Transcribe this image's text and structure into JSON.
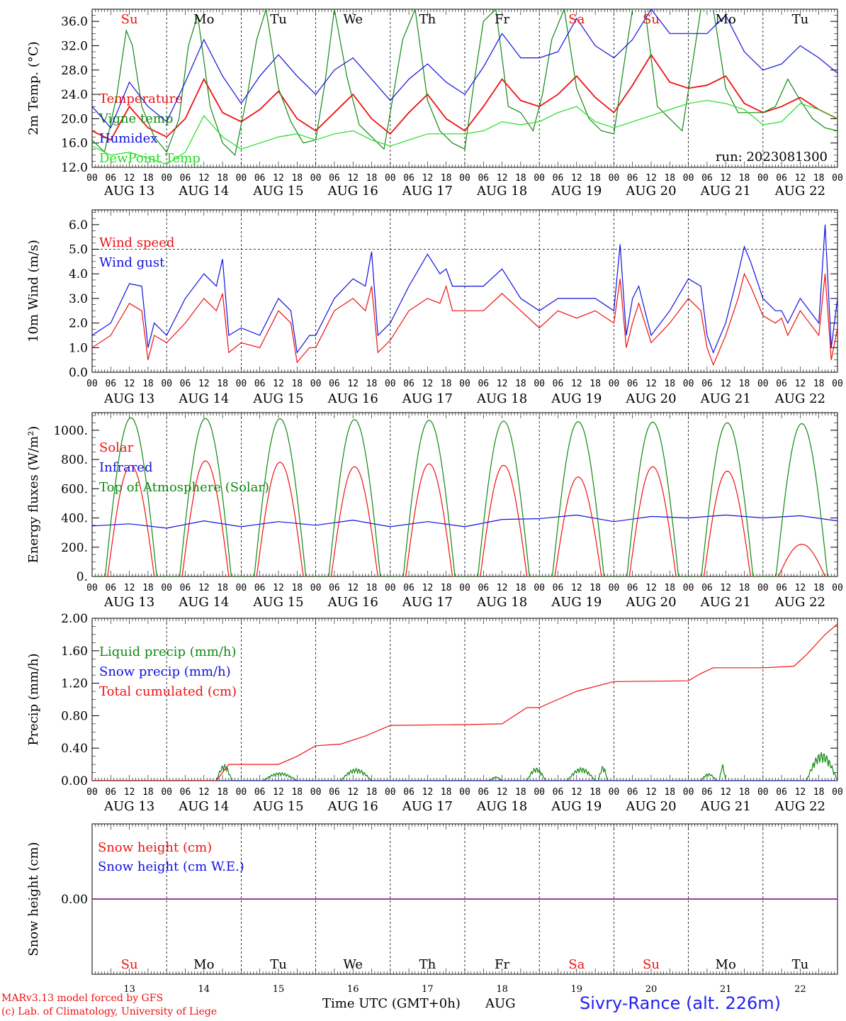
{
  "colors": {
    "red": "#ee1111",
    "green": "#118811",
    "lightgreen": "#22dd22",
    "blue": "#1111dd",
    "purple": "#882288",
    "black": "#000000",
    "station_blue": "#2222ee"
  },
  "days": [
    "AUG 13",
    "AUG 14",
    "AUG 15",
    "AUG 16",
    "AUG 17",
    "AUG 18",
    "AUG 19",
    "AUG 20",
    "AUG 21",
    "AUG 22"
  ],
  "weekdays": [
    "Su",
    "Mo",
    "Tu",
    "We",
    "Th",
    "Fr",
    "Sa",
    "Su",
    "Mo",
    "Tu"
  ],
  "weekday_colors": [
    "red",
    "black",
    "black",
    "black",
    "black",
    "black",
    "red",
    "red",
    "black",
    "black"
  ],
  "day_numbers": [
    "13",
    "14",
    "15",
    "16",
    "17",
    "18",
    "19",
    "20",
    "21",
    "22"
  ],
  "hour_ticks": [
    "00",
    "06",
    "12",
    "18"
  ],
  "hour_tick_end": "00",
  "chart_data": [
    {
      "type": "line",
      "ylabel": "2m Temp. (°C)",
      "ylim": [
        12,
        38
      ],
      "yticks": [
        "12.0",
        "16.0",
        "20.0",
        "24.0",
        "28.0",
        "32.0",
        "36.0"
      ],
      "annotation": "run: 2023081300",
      "x_unit": "hours since AUG 13 00 UTC",
      "series": [
        {
          "name": "Temperature",
          "color": "red",
          "x": [
            0,
            6,
            12,
            18,
            24,
            30,
            36,
            42,
            48,
            54,
            60,
            66,
            72,
            78,
            84,
            90,
            96,
            102,
            108,
            114,
            120,
            126,
            132,
            138,
            144,
            150,
            156,
            162,
            168,
            174,
            180,
            186,
            192,
            198,
            204,
            210,
            216,
            222,
            228,
            234,
            240
          ],
          "values": [
            18.0,
            16.5,
            22.0,
            18.5,
            17.0,
            20.0,
            26.5,
            21.0,
            19.5,
            21.5,
            24.5,
            20.0,
            18.0,
            21.0,
            24.0,
            20.0,
            17.5,
            21.0,
            24.0,
            20.0,
            18.0,
            22.0,
            26.5,
            23.0,
            22.0,
            24.0,
            27.0,
            23.5,
            21.0,
            25.5,
            30.5,
            26.0,
            25.0,
            25.5,
            27.0,
            22.5,
            21.0,
            22.0,
            23.5,
            21.5,
            20.0
          ]
        },
        {
          "name": "Vigne temp",
          "color": "green",
          "x": [
            0,
            4,
            8,
            11,
            13,
            16,
            20,
            24,
            28,
            31,
            34,
            38,
            42,
            46,
            50,
            53,
            56,
            60,
            64,
            68,
            72,
            75,
            78,
            82,
            86,
            90,
            94,
            97,
            100,
            104,
            108,
            112,
            116,
            120,
            123,
            126,
            130,
            134,
            138,
            142,
            145,
            148,
            152,
            156,
            160,
            164,
            168,
            171,
            174,
            178,
            182,
            186,
            190,
            193,
            196,
            200,
            204,
            208,
            212,
            216,
            220,
            224,
            228,
            232,
            236,
            240
          ],
          "values": [
            16.5,
            14.5,
            24.0,
            34.5,
            32.0,
            22.0,
            17.0,
            14.5,
            20.0,
            32.0,
            37.0,
            22.0,
            16.0,
            14.0,
            24.0,
            33.0,
            38.0,
            25.0,
            19.5,
            16.0,
            16.5,
            26.0,
            38.0,
            27.0,
            19.0,
            17.0,
            15.0,
            24.0,
            33.0,
            38.0,
            23.0,
            18.0,
            16.0,
            15.0,
            26.0,
            36.0,
            38.0,
            22.0,
            21.0,
            18.0,
            24.0,
            33.0,
            38.0,
            25.0,
            20.0,
            18.0,
            17.5,
            28.0,
            38.0,
            38.0,
            22.0,
            20.0,
            18.0,
            28.0,
            38.0,
            38.0,
            25.0,
            21.0,
            21.0,
            21.0,
            22.0,
            26.5,
            23.0,
            20.0,
            18.5,
            18.0
          ]
        },
        {
          "name": "Humidex",
          "color": "blue",
          "x": [
            0,
            6,
            12,
            18,
            24,
            30,
            36,
            42,
            48,
            54,
            60,
            66,
            72,
            78,
            84,
            90,
            96,
            102,
            108,
            114,
            120,
            126,
            132,
            138,
            144,
            150,
            156,
            162,
            168,
            174,
            180,
            186,
            192,
            198,
            204,
            210,
            216,
            222,
            228,
            234,
            240
          ],
          "values": [
            22.0,
            18.5,
            26.0,
            22.0,
            19.5,
            26.0,
            33.0,
            27.0,
            22.5,
            27.0,
            30.5,
            27.0,
            24.0,
            28.0,
            30.0,
            26.5,
            23.0,
            26.5,
            29.0,
            26.0,
            24.0,
            28.5,
            34.0,
            30.0,
            30.0,
            31.0,
            36.5,
            32.0,
            30.0,
            33.0,
            38.0,
            34.0,
            34.0,
            34.0,
            37.0,
            31.0,
            28.0,
            29.0,
            32.0,
            30.0,
            27.5
          ]
        },
        {
          "name": "DewPoint Temp",
          "color": "lightgreen",
          "x": [
            0,
            6,
            12,
            18,
            24,
            30,
            36,
            42,
            48,
            54,
            60,
            66,
            72,
            78,
            84,
            90,
            96,
            102,
            108,
            114,
            120,
            126,
            132,
            138,
            144,
            150,
            156,
            162,
            168,
            174,
            180,
            186,
            192,
            198,
            204,
            210,
            216,
            222,
            228,
            234,
            240
          ],
          "values": [
            15.5,
            14.0,
            14.5,
            13.5,
            12.5,
            14.5,
            20.5,
            17.0,
            15.0,
            16.0,
            17.0,
            17.5,
            16.5,
            17.5,
            18.0,
            16.5,
            15.5,
            16.5,
            17.5,
            17.5,
            17.5,
            18.0,
            19.5,
            19.0,
            19.5,
            21.0,
            22.0,
            19.5,
            18.5,
            19.5,
            20.5,
            21.5,
            22.5,
            23.0,
            22.5,
            21.5,
            19.0,
            19.5,
            22.5,
            21.5,
            20.0
          ]
        }
      ]
    },
    {
      "type": "line",
      "ylabel": "10m Wind (m/s)",
      "ylim": [
        0,
        6.6
      ],
      "yticks": [
        "0.0",
        "1.0",
        "2.0",
        "3.0",
        "4.0",
        "5.0",
        "6.0"
      ],
      "ref_line": 5.0,
      "series": [
        {
          "name": "Wind speed",
          "color": "red",
          "x": [
            0,
            6,
            12,
            16,
            18,
            20,
            24,
            30,
            36,
            40,
            42,
            44,
            48,
            54,
            60,
            64,
            66,
            70,
            72,
            78,
            84,
            88,
            90,
            92,
            96,
            102,
            108,
            112,
            114,
            116,
            120,
            126,
            132,
            138,
            144,
            150,
            156,
            162,
            168,
            170,
            172,
            174,
            176,
            180,
            186,
            192,
            196,
            198,
            200,
            204,
            208,
            210,
            212,
            216,
            220,
            222,
            224,
            228,
            234,
            236,
            238,
            240
          ],
          "values": [
            1.0,
            1.5,
            2.8,
            2.5,
            0.5,
            1.5,
            1.2,
            2.0,
            3.0,
            2.5,
            3.2,
            0.8,
            1.2,
            1.0,
            2.5,
            2.0,
            0.4,
            1.0,
            1.0,
            2.5,
            3.0,
            2.5,
            3.5,
            0.8,
            1.3,
            2.5,
            3.0,
            2.8,
            3.5,
            2.5,
            2.5,
            2.5,
            3.2,
            2.5,
            1.8,
            2.5,
            2.2,
            2.5,
            2.0,
            3.8,
            1.0,
            2.0,
            2.8,
            1.2,
            2.0,
            3.0,
            2.5,
            1.0,
            0.3,
            1.5,
            3.0,
            4.0,
            3.5,
            2.3,
            2.0,
            2.2,
            1.5,
            2.5,
            1.5,
            4.0,
            0.5,
            1.8
          ]
        },
        {
          "name": "Wind gust",
          "color": "blue",
          "x": [
            0,
            6,
            12,
            16,
            18,
            20,
            24,
            30,
            36,
            40,
            42,
            44,
            48,
            54,
            60,
            64,
            66,
            70,
            72,
            78,
            84,
            88,
            90,
            92,
            96,
            102,
            108,
            112,
            114,
            116,
            120,
            126,
            132,
            138,
            144,
            150,
            156,
            162,
            168,
            170,
            172,
            174,
            176,
            180,
            186,
            192,
            196,
            198,
            200,
            204,
            208,
            210,
            212,
            216,
            220,
            222,
            224,
            228,
            234,
            236,
            238,
            240
          ],
          "values": [
            1.5,
            2.0,
            3.6,
            3.5,
            1.0,
            2.0,
            1.5,
            3.0,
            4.0,
            3.5,
            4.6,
            1.5,
            1.8,
            1.5,
            3.0,
            2.5,
            0.8,
            1.5,
            1.5,
            3.0,
            3.8,
            3.5,
            4.9,
            1.5,
            2.0,
            3.5,
            4.8,
            4.0,
            4.2,
            3.5,
            3.5,
            3.5,
            4.2,
            3.0,
            2.5,
            3.0,
            3.0,
            3.0,
            2.5,
            5.2,
            1.5,
            3.0,
            3.5,
            1.5,
            2.5,
            3.8,
            3.5,
            1.5,
            0.8,
            2.0,
            4.0,
            5.1,
            4.5,
            3.0,
            2.5,
            2.5,
            2.0,
            3.0,
            2.0,
            6.0,
            1.0,
            3.0
          ]
        }
      ]
    },
    {
      "type": "line",
      "ylabel": "Energy fluxes (W/m²)",
      "ylim": [
        0,
        1120
      ],
      "yticks": [
        "0.",
        "200.",
        "400.",
        "600.",
        "800.",
        "1000."
      ],
      "series": [
        {
          "name": "Solar",
          "color": "red",
          "peaks": [
            760,
            790,
            780,
            750,
            770,
            760,
            680,
            750,
            720,
            220
          ],
          "peak_hour": 12.5,
          "half_width": 7.5
        },
        {
          "name": "Infrared",
          "color": "blue",
          "x": [
            0,
            12,
            24,
            36,
            48,
            60,
            72,
            84,
            96,
            108,
            120,
            132,
            144,
            156,
            168,
            180,
            192,
            204,
            216,
            228,
            240
          ],
          "values": [
            345,
            360,
            330,
            380,
            340,
            375,
            350,
            385,
            340,
            375,
            340,
            390,
            395,
            420,
            375,
            410,
            400,
            420,
            400,
            415,
            380
          ]
        },
        {
          "name": "Top of Atmosphere (Solar)",
          "color": "green",
          "peaks": [
            1085,
            1080,
            1078,
            1072,
            1068,
            1062,
            1058,
            1055,
            1050,
            1045
          ],
          "peak_hour": 12.5,
          "half_width": 8.3
        }
      ]
    },
    {
      "type": "line",
      "ylabel": "Precip (mm/h)",
      "ylim": [
        0,
        2.0
      ],
      "yticks": [
        "0.00",
        "0.40",
        "0.80",
        "1.20",
        "1.60",
        "2.00"
      ],
      "series": [
        {
          "name": "Liquid precip (mm/h)",
          "color": "green",
          "bursts": [
            [
              40,
              45,
              0.2
            ],
            [
              55,
              66,
              0.1
            ],
            [
              80,
              90,
              0.15
            ],
            [
              128,
              132,
              0.05
            ],
            [
              140,
              146,
              0.16
            ],
            [
              153,
              162,
              0.16
            ],
            [
              163,
              166,
              0.18
            ],
            [
              196,
              201,
              0.09
            ],
            [
              202,
              204,
              0.2
            ],
            [
              230,
              240,
              0.35
            ]
          ]
        },
        {
          "name": "Snow precip (mm/h)",
          "color": "blue",
          "x": [
            0,
            240
          ],
          "values": [
            0,
            0
          ]
        },
        {
          "name": "Total cumulated (cm)",
          "color": "red",
          "x": [
            0,
            40,
            44,
            60,
            66,
            72,
            80,
            88,
            96,
            120,
            132,
            136,
            140,
            144,
            150,
            156,
            168,
            192,
            196,
            200,
            216,
            226,
            230,
            236,
            240
          ],
          "values": [
            0,
            0,
            0.2,
            0.2,
            0.3,
            0.43,
            0.45,
            0.55,
            0.68,
            0.69,
            0.7,
            0.8,
            0.9,
            0.9,
            1.0,
            1.1,
            1.22,
            1.23,
            1.32,
            1.39,
            1.39,
            1.41,
            1.55,
            1.8,
            1.93
          ]
        }
      ]
    },
    {
      "type": "line",
      "ylabel": "Snow height (cm)",
      "ylim": [
        -1,
        1
      ],
      "yticks": [
        "0.00"
      ],
      "series": [
        {
          "name": "Snow height (cm)",
          "color": "red",
          "x": [
            0,
            240
          ],
          "values": [
            0,
            0
          ]
        },
        {
          "name": "Snow height (cm W.E.)",
          "color": "blue",
          "x": [
            0,
            240
          ],
          "values": [
            0,
            0
          ]
        }
      ]
    }
  ],
  "footer": {
    "model_line": "MARv3.13 model forced by GFS",
    "lab_line": "(c) Lab. of Climatology, University of Liege",
    "axis_title": "Time UTC (GMT+0h)",
    "month": "AUG",
    "station": "Sivry-Rance (alt. 226m)"
  }
}
